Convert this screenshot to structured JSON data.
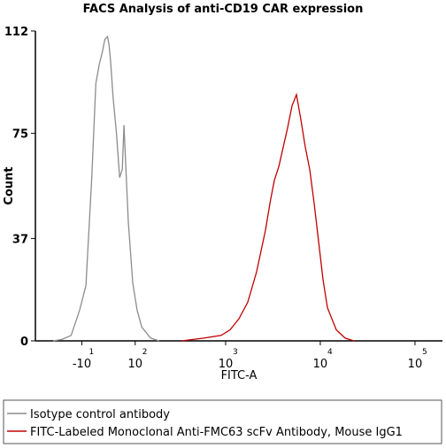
{
  "chart_data": {
    "type": "line",
    "title": "FACS Analysis of anti-CD19 CAR expression",
    "x_label": "FITC-A",
    "y_label": "Count",
    "xscale": "asinh",
    "xlim": [
      -115,
      195000
    ],
    "xticks": [
      {
        "value": -10,
        "label": "-10",
        "exponent": "1"
      },
      {
        "value": 100,
        "label": "10",
        "exponent": "2"
      },
      {
        "value": 1000,
        "label": "10",
        "exponent": "3"
      },
      {
        "value": 10000,
        "label": "10",
        "exponent": "4"
      },
      {
        "value": 100000,
        "label": "10",
        "exponent": "5"
      }
    ],
    "ylim": [
      0,
      112
    ],
    "yticks": [
      0,
      37,
      75,
      112
    ],
    "series": [
      {
        "name": "Isotype control antibody",
        "color": "#8c8c8c",
        "x": [
          -66,
          -47,
          -29,
          -14,
          -3,
          7,
          14,
          20,
          25,
          30,
          35,
          38,
          41,
          46,
          53,
          60,
          66,
          70,
          74,
          81,
          93,
          106,
          121,
          154,
          193
        ],
        "values": [
          0,
          0.5,
          2,
          11,
          20,
          59,
          93,
          100,
          104,
          109,
          110,
          107,
          101,
          88,
          75,
          59,
          62,
          78,
          65,
          43,
          21,
          11,
          5,
          1,
          0
        ]
      },
      {
        "name": "FITC-Labeled Monoclonal Anti-FMC63 scFv Antibody, Mouse IgG1",
        "color": "#c00000",
        "x": [
          340,
          584,
          899,
          1115,
          1383,
          1715,
          2128,
          2637,
          2950,
          3271,
          3650,
          4058,
          4520,
          5031,
          5600,
          6240,
          6950,
          7735,
          8600,
          9590,
          10700,
          11900,
          14755,
          18290,
          22680
        ],
        "values": [
          0,
          1,
          2,
          4,
          8,
          14,
          25,
          40,
          50,
          58,
          63,
          70,
          77,
          85,
          89,
          80,
          70,
          62,
          50,
          36,
          22,
          12,
          4,
          1,
          0
        ]
      }
    ]
  }
}
